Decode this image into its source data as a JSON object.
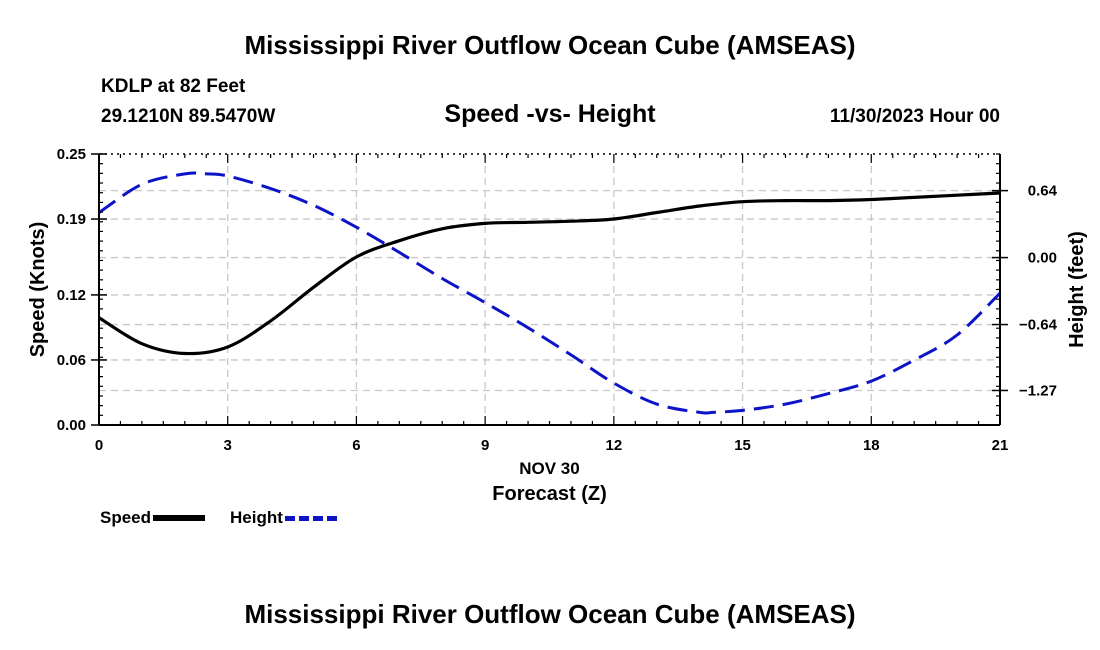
{
  "header": {
    "title": "Mississippi River Outflow Ocean Cube (AMSEAS)",
    "station": "KDLP at 82 Feet",
    "coords": "29.1210N  89.5470W",
    "subtitle": "Speed -vs- Height",
    "datetime": "11/30/2023 Hour 00"
  },
  "footer": {
    "title": "Mississippi River Outflow Ocean Cube (AMSEAS)"
  },
  "legend": {
    "speed_label": "Speed",
    "height_label": "Height"
  },
  "colors": {
    "speed": "#000000",
    "height": "#0d14c8",
    "grid": "#c8c8c8"
  },
  "chart_data": {
    "type": "line",
    "title": "Speed -vs- Height",
    "xlabel": "Forecast (Z)",
    "xlabel_date": "NOV 30",
    "ylabel": "Speed (Knots)",
    "y2label": "Height (feet)",
    "xlim": [
      0,
      21
    ],
    "ylim": [
      0,
      0.25
    ],
    "y2lim": [
      -1.6,
      0.99
    ],
    "x_ticks": [
      0,
      3,
      6,
      9,
      12,
      15,
      18,
      21
    ],
    "y_ticks": [
      0.0,
      0.06,
      0.12,
      0.19,
      0.25
    ],
    "y_tick_labels": [
      "0.00",
      "0.06",
      "0.12",
      "0.19",
      "0.25"
    ],
    "y2_ticks": [
      -1.27,
      -0.64,
      0.0,
      0.64
    ],
    "y2_tick_labels": [
      "−1.27",
      "−0.64",
      "0.00",
      "0.64"
    ],
    "grid": true,
    "series": [
      {
        "name": "Speed",
        "axis": "left",
        "style": "solid",
        "x": [
          0,
          1,
          2,
          3,
          4,
          5,
          6,
          7,
          8,
          9,
          10,
          11,
          12,
          13,
          14,
          15,
          16,
          17,
          18,
          19,
          20,
          21
        ],
        "values": [
          0.099,
          0.075,
          0.066,
          0.072,
          0.096,
          0.127,
          0.155,
          0.17,
          0.181,
          0.186,
          0.187,
          0.188,
          0.19,
          0.196,
          0.202,
          0.206,
          0.207,
          0.207,
          0.208,
          0.21,
          0.212,
          0.214
        ]
      },
      {
        "name": "Height",
        "axis": "right",
        "style": "dashed",
        "x": [
          0,
          1,
          2,
          2.5,
          3,
          4,
          5,
          6,
          7,
          8,
          9,
          10,
          11,
          12,
          13,
          14,
          14.3,
          15,
          16,
          17,
          18,
          19,
          20,
          21
        ],
        "values": [
          0.43,
          0.7,
          0.8,
          0.8,
          0.78,
          0.66,
          0.5,
          0.29,
          0.05,
          -0.2,
          -0.43,
          -0.67,
          -0.93,
          -1.2,
          -1.4,
          -1.48,
          -1.48,
          -1.46,
          -1.4,
          -1.3,
          -1.18,
          -0.98,
          -0.74,
          -0.34
        ]
      }
    ]
  }
}
